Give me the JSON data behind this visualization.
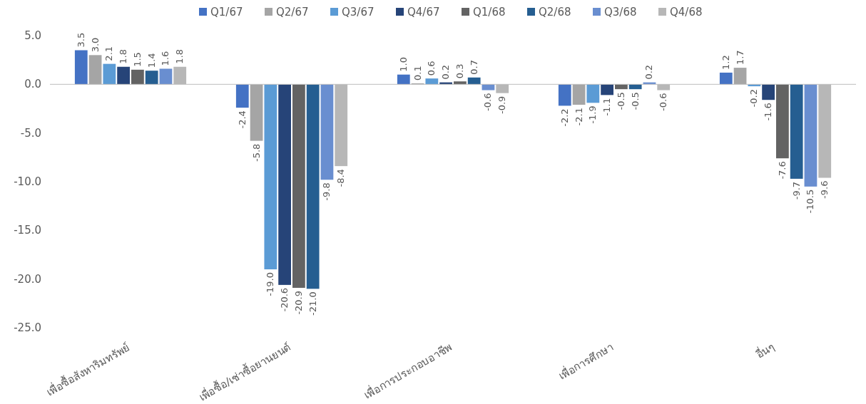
{
  "chart_data": {
    "type": "bar",
    "categories": [
      "เพื่อซื้อสังหาริมทรัพย์",
      "เพื่อซื้อ/เช่าซื้อยานยนต์",
      "เพื่อการประกอบอาชีพ",
      "เพื่อการศึกษา",
      "อื่นๆ"
    ],
    "series": [
      {
        "name": "Q1/67",
        "color": "#4472c4",
        "values": [
          3.5,
          -2.4,
          1.0,
          -2.2,
          1.2
        ],
        "value_labels": [
          "3.5",
          "-2.4",
          "1.0",
          "-2.2",
          "1.2"
        ]
      },
      {
        "name": "Q2/67",
        "color": "#a5a5a5",
        "values": [
          3.0,
          -5.8,
          0.1,
          -2.1,
          1.7
        ],
        "value_labels": [
          "3.0",
          "-5.8",
          "0.1",
          "-2.1",
          "1.7"
        ]
      },
      {
        "name": "Q3/67",
        "color": "#5b9bd5",
        "values": [
          2.1,
          -19.0,
          0.6,
          -1.9,
          -0.2
        ],
        "value_labels": [
          "2.1",
          "-19.0",
          "0.6",
          "-1.9",
          "-0.2"
        ]
      },
      {
        "name": "Q4/67",
        "color": "#264478",
        "values": [
          1.8,
          -20.6,
          0.2,
          -1.1,
          -1.6
        ],
        "value_labels": [
          "1.8",
          "-20.6",
          "0.2",
          "-1.1",
          "-1.6"
        ]
      },
      {
        "name": "Q1/68",
        "color": "#636363",
        "values": [
          1.5,
          -20.9,
          0.3,
          -0.5,
          -7.6
        ],
        "value_labels": [
          "1.5",
          "-20.9",
          "0.3",
          "-0.5",
          "-7.6"
        ]
      },
      {
        "name": "Q2/68",
        "color": "#255e91",
        "values": [
          1.4,
          -21.0,
          0.7,
          -0.5,
          -9.7
        ],
        "value_labels": [
          "1.4",
          "-21.0",
          "0.7",
          "-0.5",
          "-9.7"
        ]
      },
      {
        "name": "Q3/68",
        "color": "#698ed0",
        "values": [
          1.6,
          -9.8,
          -0.6,
          0.2,
          -10.5
        ],
        "value_labels": [
          "1.6",
          "-9.8",
          "-0.6",
          "0.2",
          "-10.5"
        ]
      },
      {
        "name": "Q4/68",
        "color": "#b7b7b7",
        "values": [
          1.8,
          -8.4,
          -0.9,
          -0.6,
          -9.6
        ],
        "value_labels": [
          "1.8",
          "-8.4",
          "-0.9",
          "-0.6",
          "-9.6"
        ]
      }
    ],
    "ylim": [
      -25,
      5
    ],
    "yticks": [
      {
        "value": -25,
        "label": "-25.0"
      },
      {
        "value": -20,
        "label": "-20.0"
      },
      {
        "value": -15,
        "label": "-15.0"
      },
      {
        "value": -10,
        "label": "-10.0"
      },
      {
        "value": -5,
        "label": "-5.0"
      },
      {
        "value": 0,
        "label": "0.0"
      },
      {
        "value": 5,
        "label": "5.0"
      }
    ],
    "legend": "top"
  }
}
